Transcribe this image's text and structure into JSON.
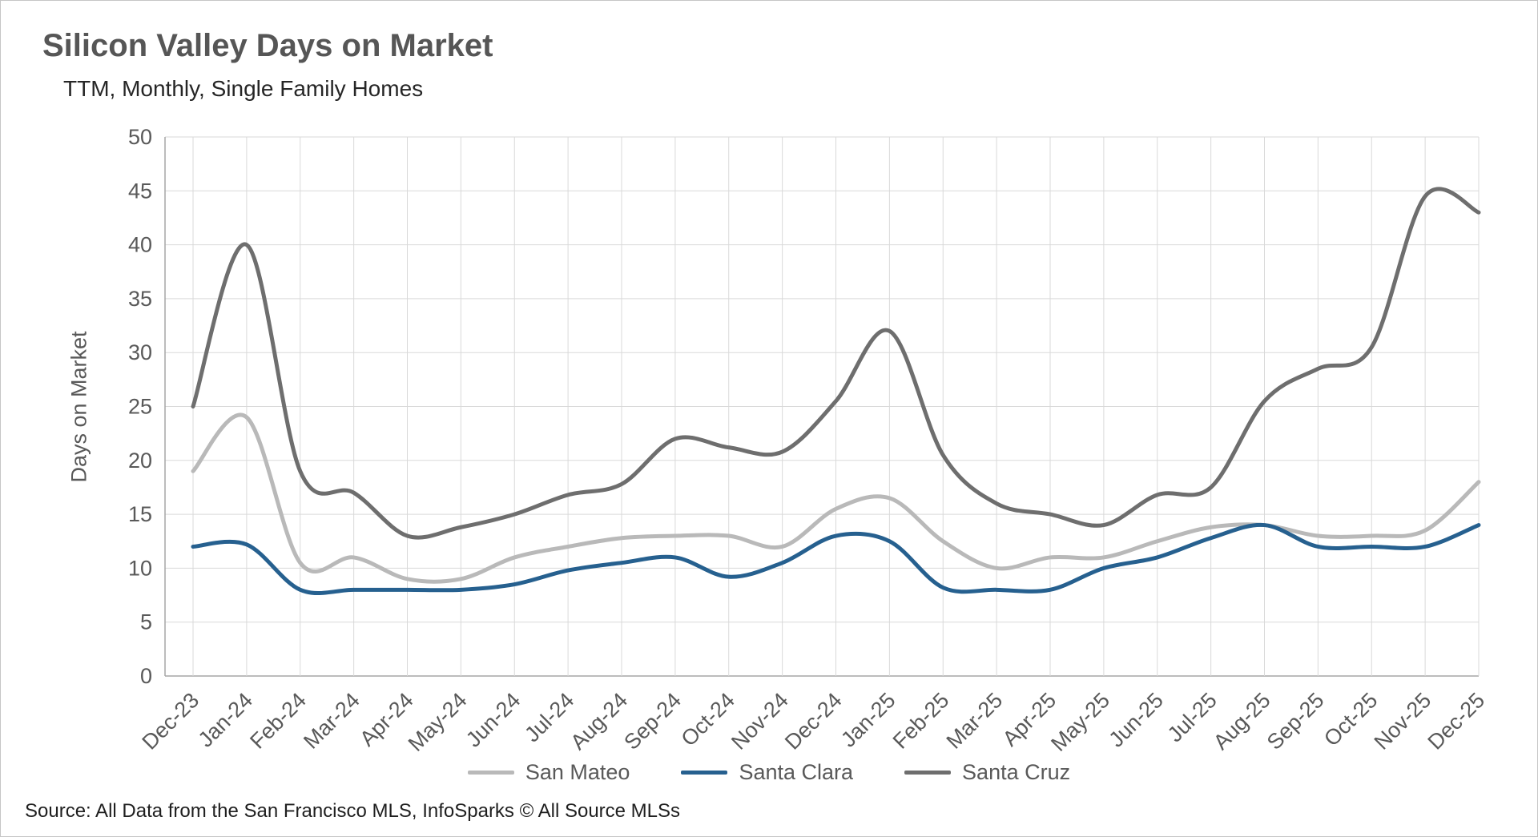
{
  "title": "Silicon Valley Days on Market",
  "subtitle": "TTM, Monthly, Single Family Homes",
  "source": "Source: All Data from the San Francisco MLS, InfoSparks © All Source MLSs",
  "colors": {
    "grid": "#d9d9d9",
    "axis": "#a6a6a6",
    "tick_text": "#595959",
    "title_text": "#565656"
  },
  "chart_data": {
    "type": "line",
    "title": "Silicon Valley Days on Market",
    "subtitle": "TTM, Monthly, Single Family Homes",
    "xlabel": "",
    "ylabel": "Days on Market",
    "ylim": [
      0,
      50
    ],
    "ytick_step": 5,
    "grid": true,
    "legend_position": "bottom",
    "line_style": "smooth",
    "categories": [
      "Dec-23",
      "Jan-24",
      "Feb-24",
      "Mar-24",
      "Apr-24",
      "May-24",
      "Jun-24",
      "Jul-24",
      "Aug-24",
      "Sep-24",
      "Oct-24",
      "Nov-24",
      "Dec-24",
      "Jan-25",
      "Feb-25",
      "Mar-25",
      "Apr-25",
      "May-25",
      "Jun-25",
      "Jul-25",
      "Aug-25",
      "Sep-25",
      "Oct-25",
      "Nov-25",
      "Dec-25"
    ],
    "series": [
      {
        "name": "San Mateo",
        "color": "#b9b9b9",
        "values": [
          19,
          24,
          10.5,
          11,
          9,
          9,
          11,
          12,
          12.8,
          13,
          13,
          12,
          15.5,
          16.5,
          12.5,
          10,
          11,
          11,
          12.5,
          13.8,
          14,
          13,
          13,
          13.5,
          18
        ]
      },
      {
        "name": "Santa Clara",
        "color": "#26608f",
        "values": [
          12,
          12.2,
          8,
          8,
          8,
          8,
          8.5,
          9.8,
          10.5,
          11,
          9.2,
          10.5,
          13,
          12.5,
          8.2,
          8,
          8,
          10,
          11,
          12.8,
          14,
          12,
          12,
          12,
          14
        ]
      },
      {
        "name": "Santa Cruz",
        "color": "#6e6e6e",
        "values": [
          25,
          40,
          19,
          17,
          13,
          13.8,
          15,
          16.8,
          17.8,
          22,
          21.2,
          20.8,
          25.5,
          32,
          20.5,
          16,
          15,
          14,
          16.8,
          17.5,
          25.5,
          28.5,
          30.5,
          44.5,
          43
        ]
      }
    ]
  }
}
